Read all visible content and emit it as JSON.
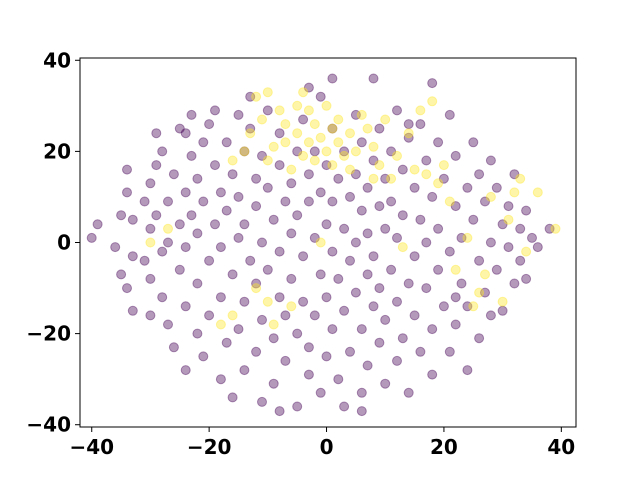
{
  "chart_data": {
    "type": "scatter",
    "title": "",
    "xlabel": "",
    "ylabel": "",
    "xlim": [
      -42,
      42.5
    ],
    "ylim": [
      -40.5,
      40.5
    ],
    "xticks": [
      -40,
      -20,
      0,
      20,
      40
    ],
    "yticks": [
      -40,
      -20,
      0,
      20,
      40
    ],
    "xtick_labels": [
      "−40",
      "−20",
      "0",
      "20",
      "40"
    ],
    "ytick_labels": [
      "−40",
      "−20",
      "0",
      "20",
      "40"
    ],
    "grid": false,
    "legend": "none",
    "marker_alpha": 0.4,
    "colors": {
      "class_0": "#440154",
      "class_1": "#fde725"
    },
    "series": [
      {
        "color": "#440154",
        "points": [
          [
            -40,
            1
          ],
          [
            -39,
            4
          ],
          [
            -36,
            -1
          ],
          [
            -35,
            -7
          ],
          [
            -35,
            6
          ],
          [
            -34,
            -10
          ],
          [
            -34,
            11
          ],
          [
            -34,
            16
          ],
          [
            -33,
            5
          ],
          [
            -33,
            -3
          ],
          [
            -33,
            -15
          ],
          [
            -31,
            -4
          ],
          [
            -31,
            9
          ],
          [
            -30,
            -16
          ],
          [
            -30,
            13
          ],
          [
            -30,
            -8
          ],
          [
            -30,
            3
          ],
          [
            -29,
            6
          ],
          [
            -29,
            17
          ],
          [
            -29,
            24
          ],
          [
            -28,
            -2
          ],
          [
            -28,
            20
          ],
          [
            -28,
            -12
          ],
          [
            -27,
            9
          ],
          [
            -27,
            0
          ],
          [
            -27,
            -18
          ],
          [
            -26,
            15
          ],
          [
            -26,
            -23
          ],
          [
            -25,
            -6
          ],
          [
            -25,
            4
          ],
          [
            -25,
            25
          ],
          [
            -24,
            -28
          ],
          [
            -24,
            11
          ],
          [
            -24,
            -14
          ],
          [
            -24,
            -1
          ],
          [
            -23,
            19
          ],
          [
            -23,
            6
          ],
          [
            -23,
            28
          ],
          [
            -22,
            -20
          ],
          [
            -22,
            -9
          ],
          [
            -22,
            2
          ],
          [
            -22,
            14
          ],
          [
            -21,
            22
          ],
          [
            -21,
            -25
          ],
          [
            -21,
            9
          ],
          [
            -20,
            -4
          ],
          [
            -20,
            -16
          ],
          [
            -20,
            26
          ],
          [
            -19,
            4
          ],
          [
            -19,
            17
          ],
          [
            -18,
            -12
          ],
          [
            -18,
            -30
          ],
          [
            -18,
            11
          ],
          [
            -18,
            -1
          ],
          [
            -17,
            22
          ],
          [
            -17,
            -22
          ],
          [
            -17,
            7
          ],
          [
            -16,
            -7
          ],
          [
            -16,
            15
          ],
          [
            -16,
            -34
          ],
          [
            -15,
            28
          ],
          [
            -15,
            1
          ],
          [
            -15,
            -19
          ],
          [
            -15,
            10
          ],
          [
            -14,
            -13
          ],
          [
            -14,
            20
          ],
          [
            -14,
            -28
          ],
          [
            -14,
            4
          ],
          [
            -13,
            -4
          ],
          [
            -13,
            25
          ],
          [
            -12,
            14
          ],
          [
            -12,
            -24
          ],
          [
            -12,
            -9
          ],
          [
            -12,
            8
          ],
          [
            -11,
            -35
          ],
          [
            -11,
            19
          ],
          [
            -11,
            0
          ],
          [
            -11,
            -17
          ],
          [
            -10,
            29
          ],
          [
            -10,
            -6
          ],
          [
            -10,
            12
          ],
          [
            -9,
            -21
          ],
          [
            -9,
            5
          ],
          [
            -9,
            -31
          ],
          [
            -8,
            17
          ],
          [
            -8,
            -12
          ],
          [
            -8,
            -2
          ],
          [
            -8,
            24
          ],
          [
            -7,
            9
          ],
          [
            -7,
            -26
          ],
          [
            -7,
            -16
          ],
          [
            -6,
            2
          ],
          [
            -6,
            13
          ],
          [
            -6,
            -8
          ],
          [
            -5,
            -36
          ],
          [
            -5,
            20
          ],
          [
            -5,
            -20
          ],
          [
            -5,
            6
          ],
          [
            -4,
            -13
          ],
          [
            -4,
            -3
          ],
          [
            -4,
            27
          ],
          [
            -3,
            15
          ],
          [
            -3,
            -29
          ],
          [
            -3,
            9
          ],
          [
            -3,
            -23
          ],
          [
            -2,
            1
          ],
          [
            -2,
            -16
          ],
          [
            -2,
            20
          ],
          [
            -1,
            -7
          ],
          [
            -1,
            11
          ],
          [
            -1,
            32
          ],
          [
            -1,
            -33
          ],
          [
            0,
            4
          ],
          [
            0,
            -12
          ],
          [
            0,
            -25
          ],
          [
            0,
            17
          ],
          [
            1,
            -2
          ],
          [
            1,
            -19
          ],
          [
            1,
            9
          ],
          [
            1,
            25
          ],
          [
            2,
            -30
          ],
          [
            2,
            14
          ],
          [
            2,
            -8
          ],
          [
            3,
            3
          ],
          [
            3,
            -36
          ],
          [
            3,
            -15
          ],
          [
            3,
            20
          ],
          [
            4,
            -4
          ],
          [
            4,
            10
          ],
          [
            4,
            -24
          ],
          [
            5,
            28
          ],
          [
            5,
            -11
          ],
          [
            5,
            15
          ],
          [
            5,
            0
          ],
          [
            6,
            -19
          ],
          [
            6,
            7
          ],
          [
            6,
            -33
          ],
          [
            6,
            22
          ],
          [
            7,
            -7
          ],
          [
            7,
            12
          ],
          [
            7,
            -27
          ],
          [
            7,
            2
          ],
          [
            8,
            36
          ],
          [
            8,
            18
          ],
          [
            8,
            -14
          ],
          [
            8,
            -3
          ],
          [
            9,
            8
          ],
          [
            9,
            -22
          ],
          [
            9,
            25
          ],
          [
            9,
            -10
          ],
          [
            10,
            14
          ],
          [
            10,
            -31
          ],
          [
            10,
            3
          ],
          [
            10,
            -17
          ],
          [
            11,
            -6
          ],
          [
            11,
            20
          ],
          [
            11,
            9
          ],
          [
            12,
            -26
          ],
          [
            12,
            -13
          ],
          [
            12,
            29
          ],
          [
            12,
            1
          ],
          [
            13,
            16
          ],
          [
            13,
            -21
          ],
          [
            13,
            6
          ],
          [
            14,
            -9
          ],
          [
            14,
            23
          ],
          [
            14,
            -33
          ],
          [
            15,
            12
          ],
          [
            15,
            -3
          ],
          [
            15,
            -16
          ],
          [
            16,
            26
          ],
          [
            16,
            5
          ],
          [
            16,
            -24
          ],
          [
            17,
            -10
          ],
          [
            17,
            18
          ],
          [
            17,
            0
          ],
          [
            18,
            -19
          ],
          [
            18,
            10
          ],
          [
            18,
            -29
          ],
          [
            19,
            22
          ],
          [
            19,
            -6
          ],
          [
            19,
            3
          ],
          [
            20,
            -14
          ],
          [
            20,
            14
          ],
          [
            21,
            -24
          ],
          [
            21,
            28
          ],
          [
            21,
            -2
          ],
          [
            22,
            8
          ],
          [
            22,
            -18
          ],
          [
            22,
            19
          ],
          [
            23,
            -9
          ],
          [
            23,
            1
          ],
          [
            24,
            12
          ],
          [
            24,
            -28
          ],
          [
            24,
            -14
          ],
          [
            25,
            5
          ],
          [
            25,
            22
          ],
          [
            26,
            -4
          ],
          [
            26,
            -21
          ],
          [
            26,
            15
          ],
          [
            27,
            9
          ],
          [
            27,
            -11
          ],
          [
            28,
            0
          ],
          [
            28,
            18
          ],
          [
            28,
            -16
          ],
          [
            29,
            -6
          ],
          [
            29,
            12
          ],
          [
            30,
            4
          ],
          [
            30,
            -15
          ],
          [
            31,
            -1
          ],
          [
            31,
            8
          ],
          [
            32,
            -9
          ],
          [
            32,
            15
          ],
          [
            33,
            3
          ],
          [
            33,
            -4
          ],
          [
            34,
            7
          ],
          [
            34,
            -8
          ],
          [
            35,
            1
          ],
          [
            36,
            -1
          ],
          [
            38,
            3
          ],
          [
            18,
            35
          ],
          [
            14,
            26
          ],
          [
            -13,
            32
          ],
          [
            -3,
            34
          ],
          [
            1,
            36
          ],
          [
            -24,
            24
          ],
          [
            -19,
            29
          ],
          [
            22,
            -12
          ],
          [
            -8,
            -37
          ],
          [
            6,
            -37
          ]
        ]
      },
      {
        "color": "#fde725",
        "points": [
          [
            -30,
            0
          ],
          [
            -27,
            3
          ],
          [
            -18,
            -18
          ],
          [
            -16,
            -16
          ],
          [
            -16,
            18
          ],
          [
            -14,
            20
          ],
          [
            -13,
            24
          ],
          [
            -12,
            32
          ],
          [
            -12,
            -10
          ],
          [
            -11,
            27
          ],
          [
            -10,
            33
          ],
          [
            -10,
            18
          ],
          [
            -10,
            -13
          ],
          [
            -9,
            21
          ],
          [
            -9,
            -18
          ],
          [
            -8,
            29
          ],
          [
            -7,
            26
          ],
          [
            -7,
            22
          ],
          [
            -6,
            16
          ],
          [
            -6,
            -14
          ],
          [
            -5,
            30
          ],
          [
            -5,
            24
          ],
          [
            -4,
            19
          ],
          [
            -4,
            33
          ],
          [
            -3,
            22
          ],
          [
            -3,
            29
          ],
          [
            -2,
            18
          ],
          [
            -2,
            26
          ],
          [
            -1,
            23
          ],
          [
            -1,
            0
          ],
          [
            0,
            20
          ],
          [
            0,
            30
          ],
          [
            1,
            17
          ],
          [
            1,
            25
          ],
          [
            2,
            22
          ],
          [
            2,
            27
          ],
          [
            3,
            19
          ],
          [
            4,
            16
          ],
          [
            4,
            24
          ],
          [
            5,
            20
          ],
          [
            6,
            28
          ],
          [
            7,
            25
          ],
          [
            8,
            14
          ],
          [
            8,
            21
          ],
          [
            9,
            17
          ],
          [
            10,
            27
          ],
          [
            11,
            14
          ],
          [
            12,
            19
          ],
          [
            13,
            -1
          ],
          [
            14,
            24
          ],
          [
            15,
            16
          ],
          [
            16,
            29
          ],
          [
            17,
            15
          ],
          [
            18,
            31
          ],
          [
            19,
            13
          ],
          [
            20,
            17
          ],
          [
            21,
            9
          ],
          [
            22,
            -6
          ],
          [
            24,
            1
          ],
          [
            25,
            -14
          ],
          [
            26,
            -11
          ],
          [
            27,
            -7
          ],
          [
            28,
            10
          ],
          [
            30,
            -13
          ],
          [
            31,
            5
          ],
          [
            32,
            11
          ],
          [
            33,
            14
          ],
          [
            34,
            -2
          ],
          [
            36,
            11
          ],
          [
            39,
            3
          ]
        ]
      }
    ]
  }
}
